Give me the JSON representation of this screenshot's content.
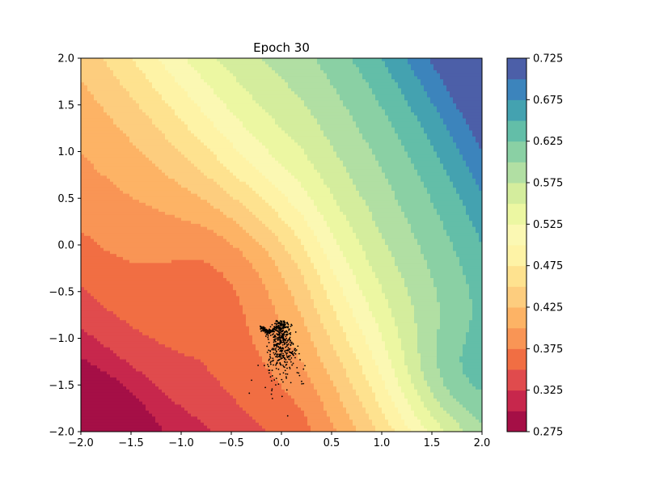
{
  "chart_data": {
    "type": "contourf",
    "title": "Epoch 30",
    "xlabel": "",
    "ylabel": "",
    "xlim": [
      -2.0,
      2.0
    ],
    "ylim": [
      -2.0,
      2.0
    ],
    "x_ticks": [
      "−2.0",
      "−1.5",
      "−1.0",
      "−0.5",
      "0.0",
      "0.5",
      "1.0",
      "1.5",
      "2.0"
    ],
    "y_ticks": [
      "−2.0",
      "−1.5",
      "−1.0",
      "−0.5",
      "0.0",
      "0.5",
      "1.0",
      "1.5",
      "2.0"
    ],
    "colorbar": {
      "cmap": "Spectral",
      "levels": [
        0.275,
        0.3,
        0.325,
        0.35,
        0.375,
        0.4,
        0.425,
        0.45,
        0.475,
        0.5,
        0.525,
        0.55,
        0.575,
        0.6,
        0.625,
        0.65,
        0.675,
        0.7,
        0.725
      ],
      "tick_labels": [
        "0.275",
        "0.325",
        "0.375",
        "0.425",
        "0.475",
        "0.525",
        "0.575",
        "0.625",
        "0.675",
        "0.725"
      ],
      "colors": [
        "#a50f46",
        "#c7274c",
        "#e04b4d",
        "#f16e43",
        "#f99555",
        "#fdb365",
        "#fdcd7e",
        "#fee28f",
        "#fef3a6",
        "#fbf8b3",
        "#ecf7a2",
        "#d4ed9d",
        "#b1dfa3",
        "#8ad0a4",
        "#63bea8",
        "#44a2b0",
        "#3c84bc",
        "#4c5fa8"
      ]
    },
    "scatter": {
      "color": "#000000",
      "description_center": [
        0.0,
        -1.15
      ],
      "approx_count": 600
    },
    "grid": false
  }
}
